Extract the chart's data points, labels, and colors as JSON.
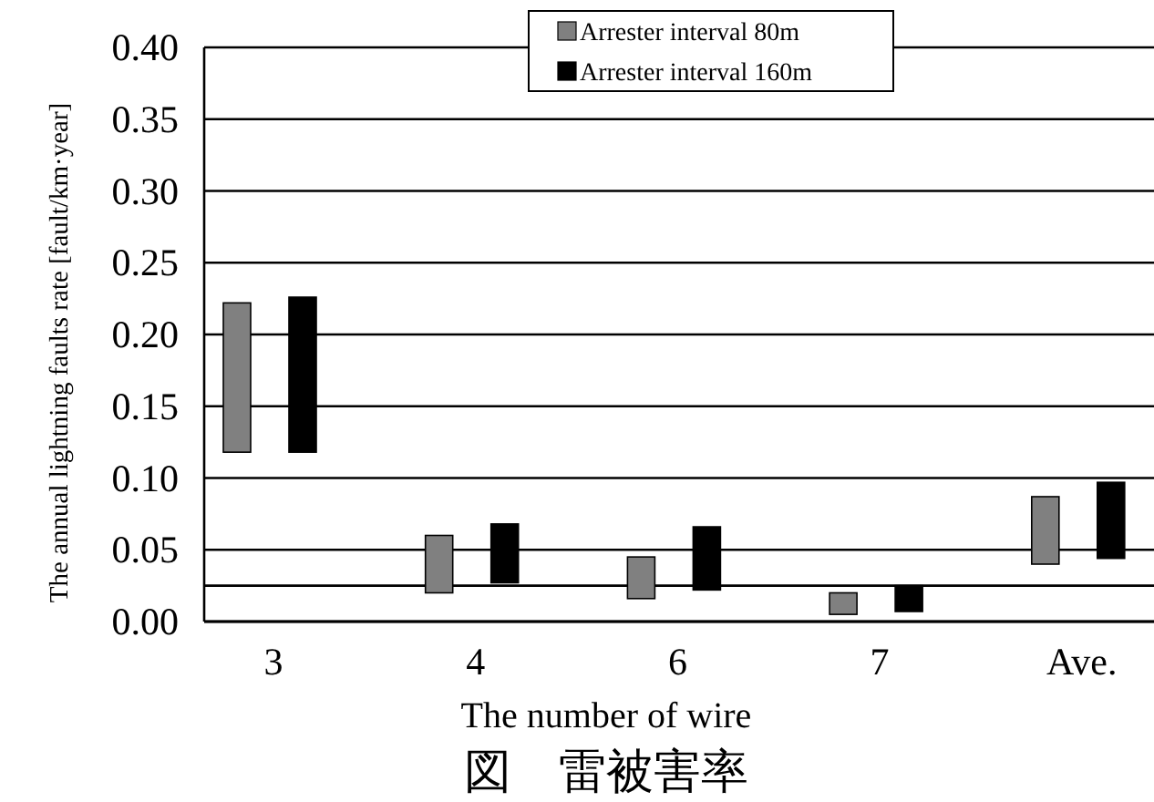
{
  "chart_data": {
    "type": "bar",
    "title": "図　雷被害率",
    "xlabel": "The number of wire",
    "ylabel": "The annual lightning faults rate [fault/km·year]",
    "categories": [
      "3",
      "4",
      "6",
      "7",
      "Ave."
    ],
    "series": [
      {
        "name": "Arrester interval 80m",
        "color": "#808080",
        "base": [
          0.118,
          0.02,
          0.016,
          0.005,
          0.04
        ],
        "values": [
          0.104,
          0.04,
          0.029,
          0.015,
          0.047
        ]
      },
      {
        "name": "Arrester interval 160m",
        "color": "#000000",
        "base": [
          0.118,
          0.027,
          0.022,
          0.007,
          0.044
        ],
        "values": [
          0.108,
          0.041,
          0.044,
          0.018,
          0.053
        ]
      }
    ],
    "ylim": [
      0,
      0.4
    ],
    "yticks": [
      {
        "value": 0,
        "label": "0.00"
      },
      {
        "value": 0.05,
        "label": "0.05"
      },
      {
        "value": 0.1,
        "label": "0.10"
      },
      {
        "value": 0.15,
        "label": "0.15"
      },
      {
        "value": 0.2,
        "label": "0.20"
      },
      {
        "value": 0.25,
        "label": "0.25"
      },
      {
        "value": 0.3,
        "label": "0.30"
      },
      {
        "value": 0.35,
        "label": "0.35"
      },
      {
        "value": 0.4,
        "label": "0.40"
      }
    ],
    "ref_lines": [
      {
        "axis": "y",
        "value": 0.025
      }
    ],
    "grid": "y",
    "legend": "top"
  }
}
